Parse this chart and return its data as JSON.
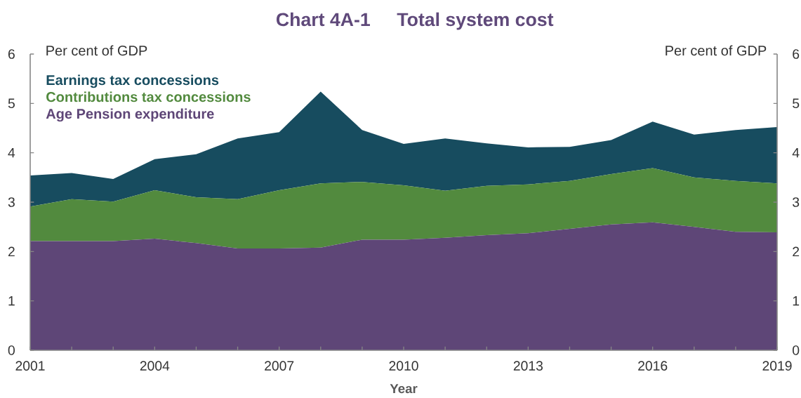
{
  "chart_data": {
    "type": "area",
    "title": "Chart 4A-1",
    "subtitle": "Total system cost",
    "xlabel": "Year",
    "ylabel": "Per cent of GDP",
    "y2label": "Per cent of GDP",
    "x": [
      2001,
      2002,
      2003,
      2004,
      2005,
      2006,
      2007,
      2008,
      2009,
      2010,
      2011,
      2012,
      2013,
      2014,
      2015,
      2016,
      2017,
      2018,
      2019
    ],
    "series": [
      {
        "name": "Age Pension expenditure",
        "color": "#5e4677",
        "values": [
          2.21,
          2.21,
          2.21,
          2.26,
          2.17,
          2.06,
          2.06,
          2.08,
          2.24,
          2.24,
          2.28,
          2.33,
          2.37,
          2.46,
          2.55,
          2.59,
          2.5,
          2.4,
          2.39
        ]
      },
      {
        "name": "Contributions tax concessions",
        "color": "#528a3e",
        "values": [
          0.7,
          0.85,
          0.8,
          0.98,
          0.93,
          1.0,
          1.18,
          1.3,
          1.17,
          1.1,
          0.95,
          1.0,
          0.99,
          0.97,
          1.02,
          1.1,
          1.0,
          1.03,
          0.99
        ]
      },
      {
        "name": "Earnings tax concessions",
        "color": "#174c5f",
        "values": [
          0.63,
          0.53,
          0.46,
          0.63,
          0.87,
          1.23,
          1.18,
          1.86,
          1.05,
          0.84,
          1.06,
          0.86,
          0.75,
          0.69,
          0.69,
          0.94,
          0.87,
          1.03,
          1.14
        ]
      }
    ],
    "stacked": true,
    "legend": "top left",
    "xlim": [
      2001,
      2019
    ],
    "xticks": [
      2001,
      {
        "value": 2002,
        "label": null
      },
      {
        "value": 2003,
        "label": null
      },
      2004,
      {
        "value": 2005,
        "label": null
      },
      {
        "value": 2006,
        "label": null
      },
      2007,
      {
        "value": 2008,
        "label": null
      },
      {
        "value": 2009,
        "label": null
      },
      2010,
      {
        "value": 2011,
        "label": null
      },
      {
        "value": 2012,
        "label": null
      },
      2013,
      {
        "value": 2014,
        "label": null
      },
      {
        "value": 2015,
        "label": null
      },
      2016,
      {
        "value": 2017,
        "label": null
      },
      {
        "value": 2018,
        "label": null
      },
      2019
    ],
    "ylim": [
      0,
      6
    ],
    "yticks": [
      0,
      1,
      2,
      3,
      4,
      5,
      6
    ],
    "y2lim": [
      0,
      6
    ],
    "y2ticks": [
      0,
      1,
      2,
      3,
      4,
      5,
      6
    ]
  }
}
